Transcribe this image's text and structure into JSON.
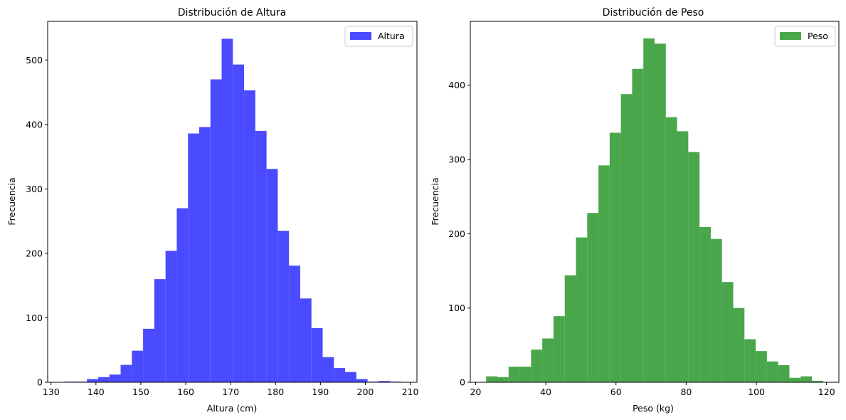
{
  "chart_data": [
    {
      "type": "histogram",
      "title": "Distribución de Altura",
      "xlabel": "Altura (cm)",
      "ylabel": "Frecuencia",
      "xlim": [
        129.25,
        211.5
      ],
      "ylim": [
        0,
        560
      ],
      "xticks": [
        130,
        140,
        150,
        160,
        170,
        180,
        190,
        200,
        210
      ],
      "yticks": [
        0,
        100,
        200,
        300,
        400,
        500
      ],
      "bin_start": 133.0,
      "bin_width": 2.5,
      "values": [
        1,
        1,
        5,
        8,
        12,
        27,
        49,
        83,
        160,
        204,
        270,
        386,
        396,
        470,
        533,
        493,
        453,
        390,
        331,
        235,
        181,
        130,
        84,
        39,
        22,
        16,
        5,
        1,
        2,
        1
      ],
      "legend": {
        "label": "Altura",
        "position": "upper-right"
      },
      "color": "#4a4aff",
      "grid": false
    },
    {
      "type": "histogram",
      "title": "Distribución de Peso",
      "xlabel": "Peso (kg)",
      "ylabel": "Frecuencia",
      "xlim": [
        18.5,
        123.5
      ],
      "ylim": [
        0,
        486
      ],
      "xticks": [
        20,
        40,
        60,
        80,
        100,
        120
      ],
      "yticks": [
        0,
        100,
        200,
        300,
        400
      ],
      "bin_start": 23.0,
      "bin_width": 3.2,
      "values": [
        8,
        7,
        21,
        21,
        44,
        59,
        89,
        144,
        195,
        228,
        292,
        336,
        388,
        422,
        463,
        456,
        357,
        338,
        310,
        209,
        193,
        135,
        100,
        58,
        42,
        28,
        23,
        6,
        8,
        2
      ],
      "legend": {
        "label": "Peso",
        "position": "upper-right"
      },
      "color": "#4aa64a",
      "grid": false
    }
  ]
}
